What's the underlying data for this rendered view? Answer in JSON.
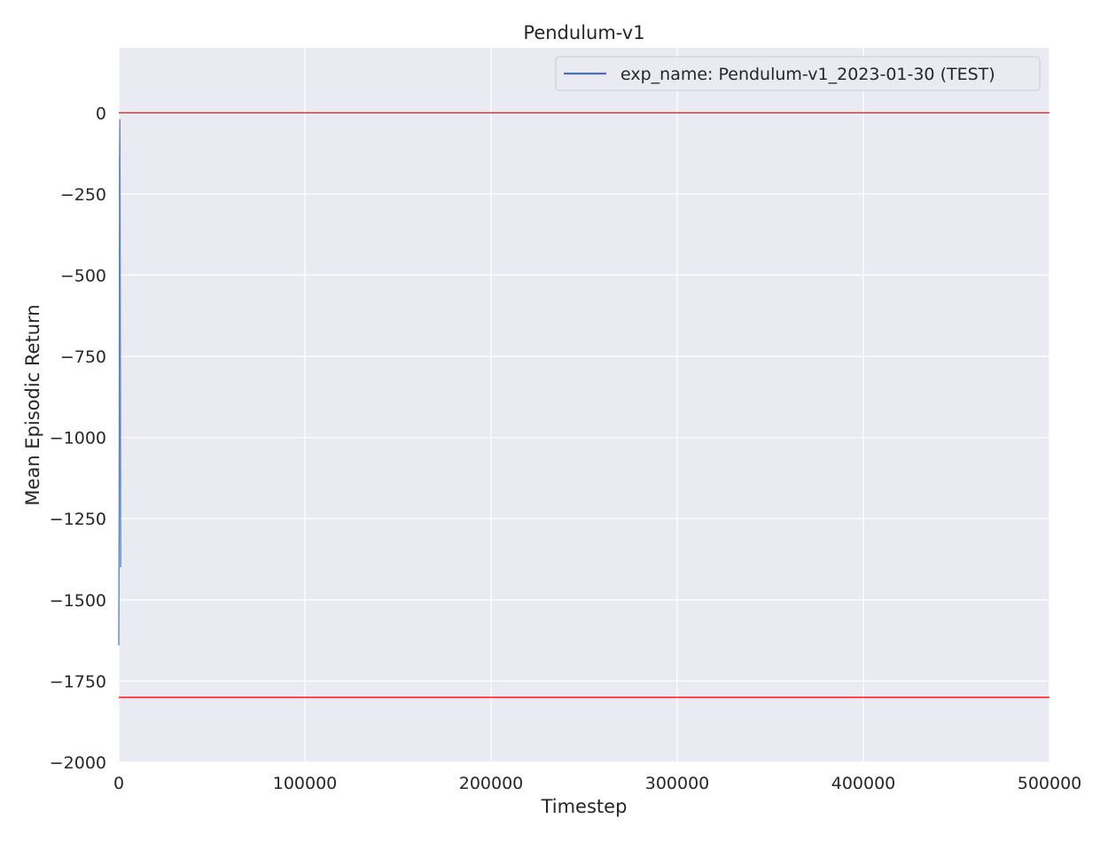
{
  "chart_data": {
    "type": "line",
    "title": "Pendulum-v1",
    "xlabel": "Timestep",
    "ylabel": "Mean Episodic Return",
    "xlim": [
      0,
      500000
    ],
    "ylim": [
      -2000,
      200
    ],
    "xticks": [
      0,
      100000,
      200000,
      300000,
      400000,
      500000
    ],
    "xtick_labels": [
      "0",
      "100000",
      "200000",
      "300000",
      "400000",
      "500000"
    ],
    "yticks": [
      0,
      -250,
      -500,
      -750,
      -1000,
      -1250,
      -1500,
      -1750,
      -2000
    ],
    "ytick_labels": [
      "0",
      "−250",
      "−500",
      "−750",
      "−1000",
      "−1250",
      "−1500",
      "−1750",
      "−2000"
    ],
    "grid": true,
    "legend_position": "top-right",
    "series": [
      {
        "name": "exp_name: Pendulum-v1_2023-01-30 (TEST)",
        "color": "#4c72b0",
        "x": [
          0,
          200,
          400,
          600,
          800,
          1000
        ],
        "y": [
          -1640,
          -1200,
          -160,
          -20,
          -600,
          -1400
        ]
      }
    ],
    "reference_lines": [
      {
        "y": 0,
        "color": "#ff0000"
      },
      {
        "y": -1800,
        "color": "#ff0000"
      }
    ],
    "colors": {
      "plot_background": "#eaeaf2",
      "grid": "#ffffff",
      "reference": "#ff0000"
    }
  }
}
